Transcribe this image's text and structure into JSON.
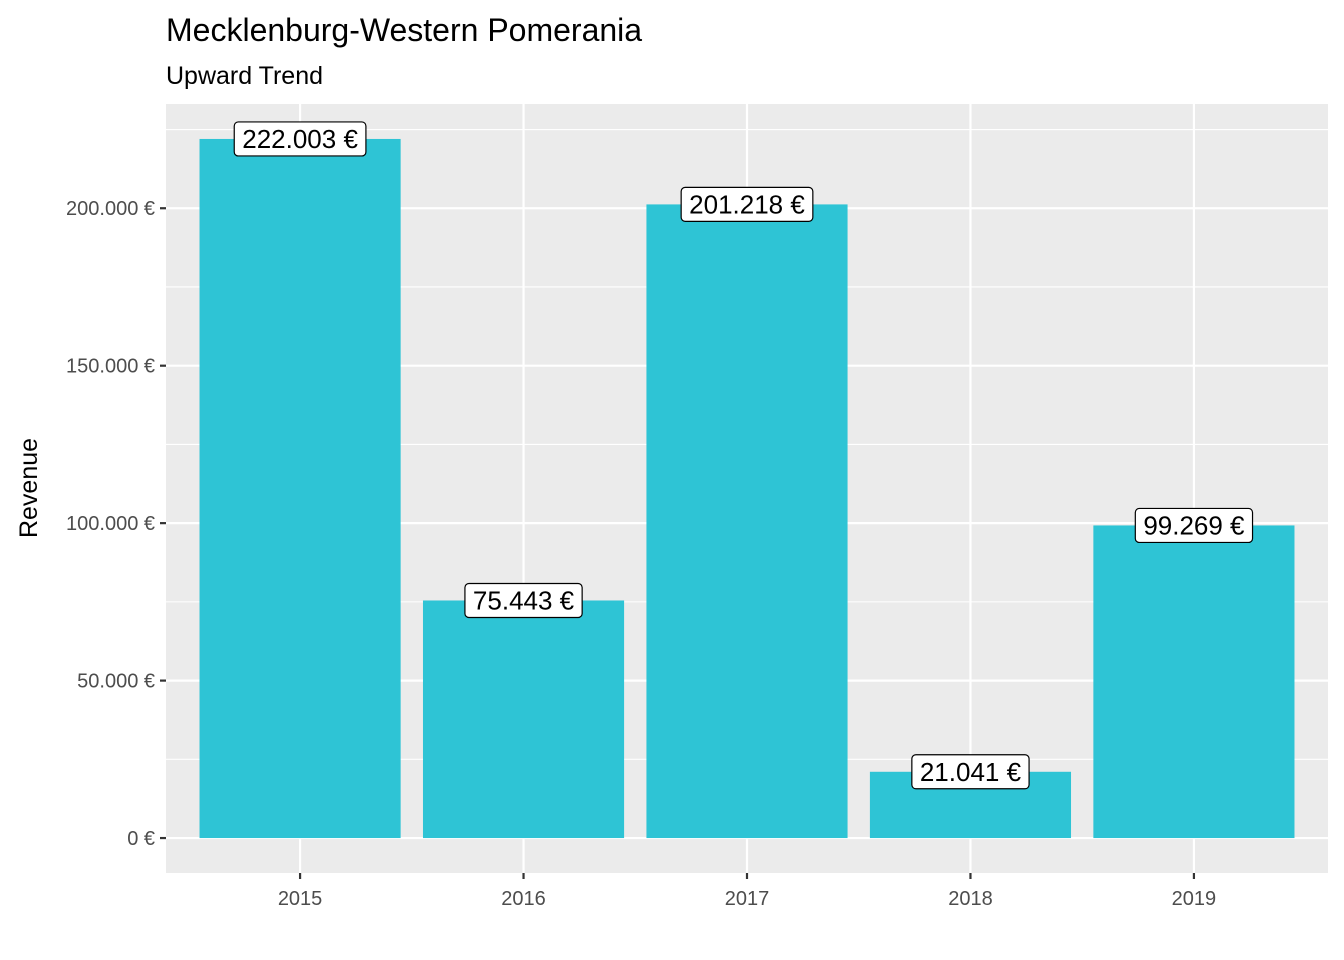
{
  "chart_data": {
    "type": "bar",
    "title": "Mecklenburg-Western Pomerania",
    "subtitle": "Upward Trend",
    "xlabel": "",
    "ylabel": "Revenue",
    "categories": [
      "2015",
      "2016",
      "2017",
      "2018",
      "2019"
    ],
    "values": [
      222003,
      75443,
      201218,
      21041,
      99269
    ],
    "value_labels": [
      "222.003 €",
      "75.443 €",
      "201.218 €",
      "21.041 €",
      "99.269 €"
    ],
    "yticks": [
      0,
      50000,
      100000,
      150000,
      200000
    ],
    "ytick_labels": [
      "0 €",
      "50.000 €",
      "100.000 €",
      "150.000 €",
      "200.000 €"
    ],
    "ylim": [
      -11100,
      233103
    ],
    "grid": true,
    "bar_color": "#2EC4D5",
    "panel_background": "#EBEBEB",
    "grid_color": "#FFFFFF"
  }
}
